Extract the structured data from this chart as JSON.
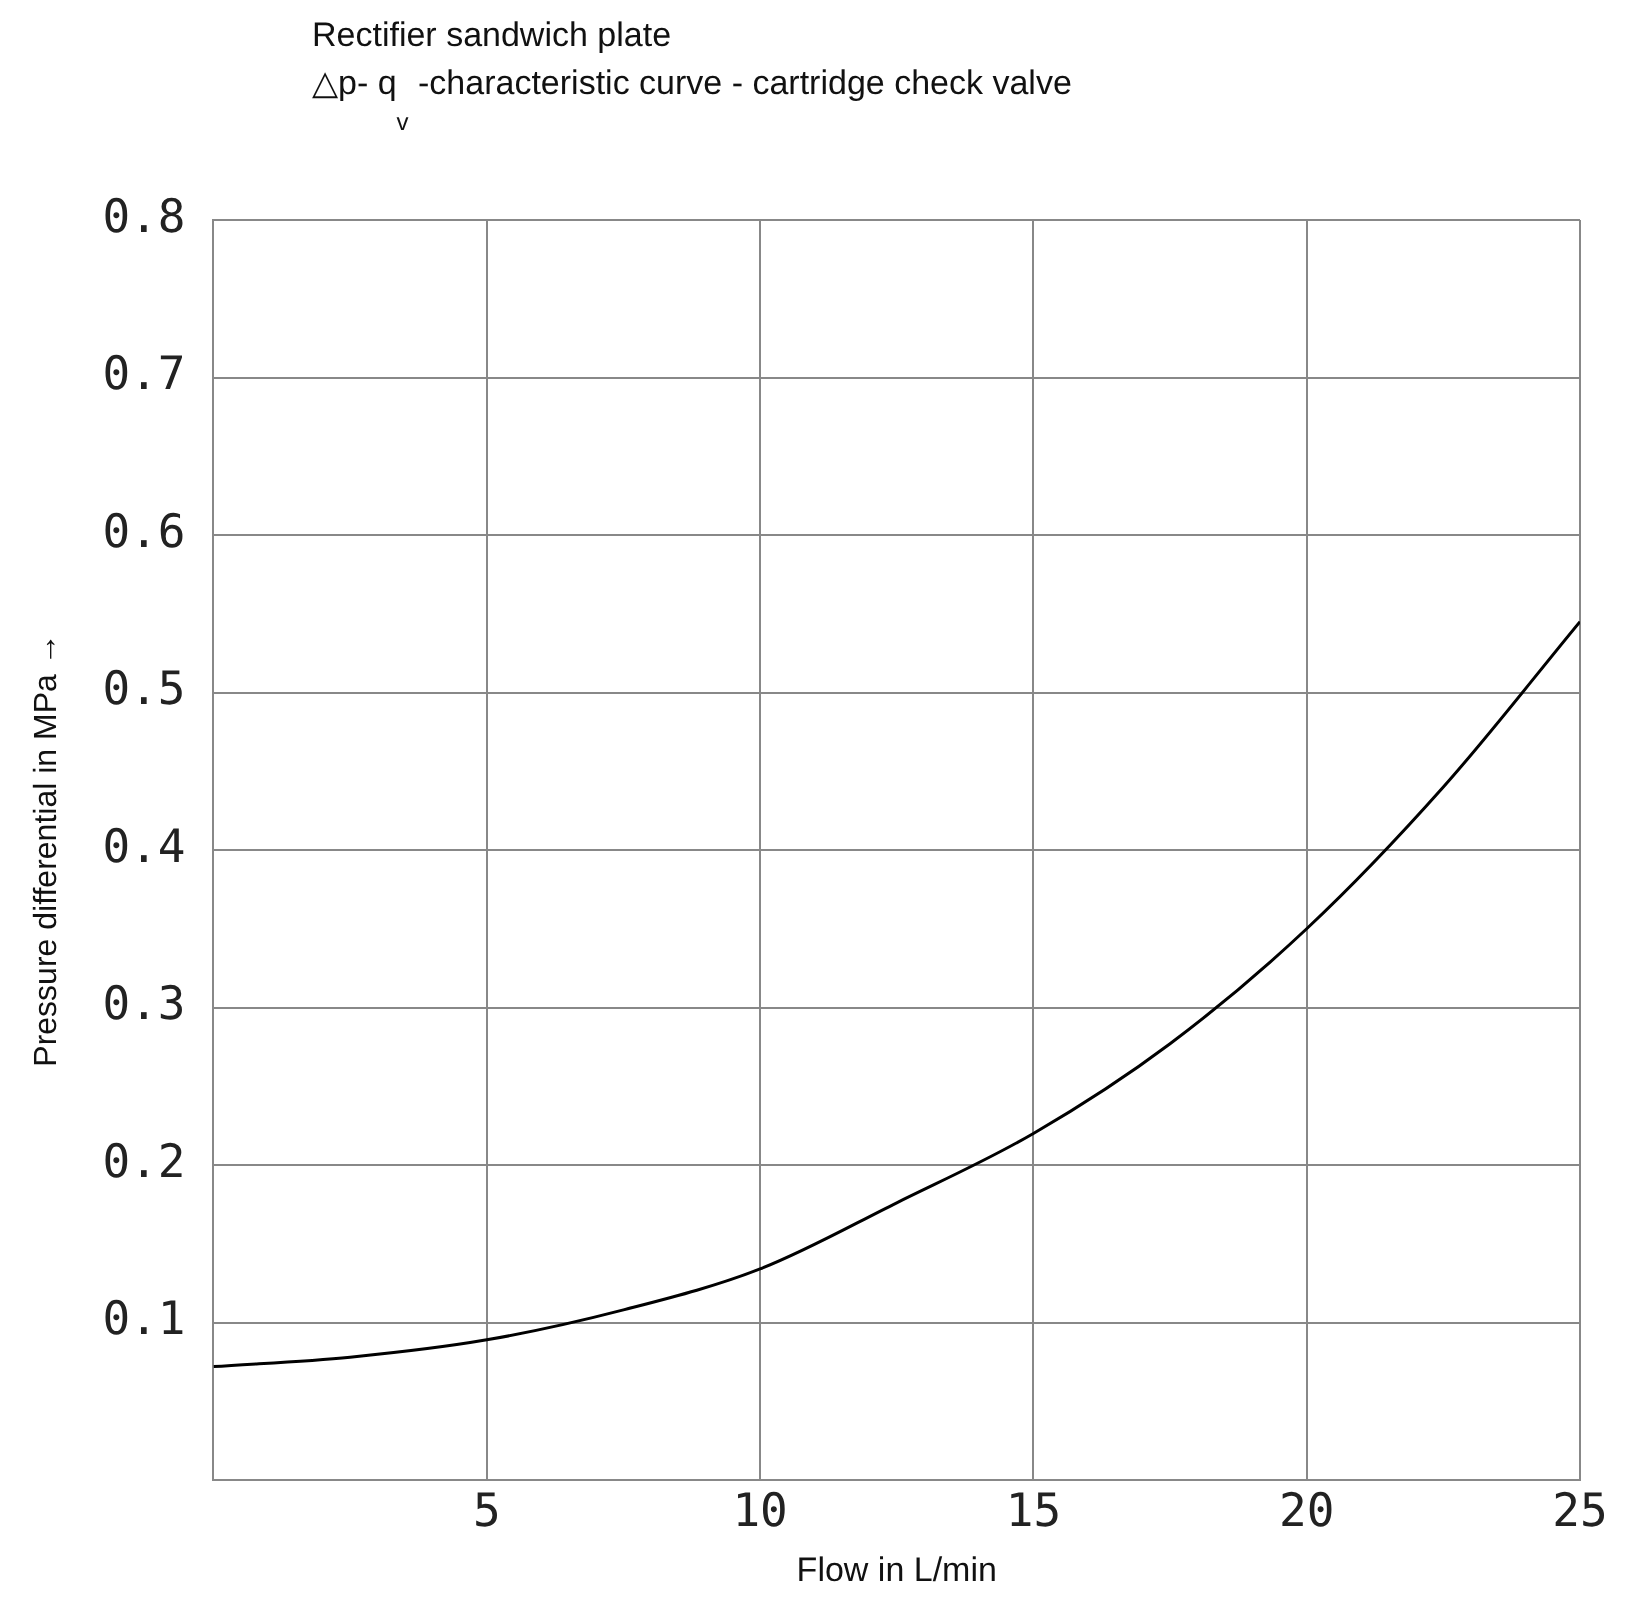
{
  "chart_data": {
    "type": "line",
    "title": "Rectifier sandwich plate",
    "subtitle": "△p- q$_{v}$ -characteristic curve - cartridge check valve",
    "xlabel": "Flow in L/min",
    "ylabel": "Pressure differential in MPa →",
    "x": [
      0,
      2.5,
      5,
      7.5,
      10,
      12.5,
      15,
      17.5,
      20,
      22.5,
      25
    ],
    "series": [
      {
        "color": "#000000",
        "values": [
          0.072,
          0.078,
          0.089,
          0.108,
          0.134,
          0.176,
          0.22,
          0.277,
          0.35,
          0.44,
          0.545
        ]
      }
    ],
    "xlim": [
      0,
      25
    ],
    "xticks": [
      5,
      10,
      15,
      20,
      25
    ],
    "ylim": [
      0,
      0.8
    ],
    "yticks": [
      0.1,
      0.2,
      0.3,
      0.4,
      0.5,
      0.6,
      0.7,
      0.8
    ],
    "grid": true,
    "legend": false,
    "marker": "none",
    "line_style": "solid"
  }
}
